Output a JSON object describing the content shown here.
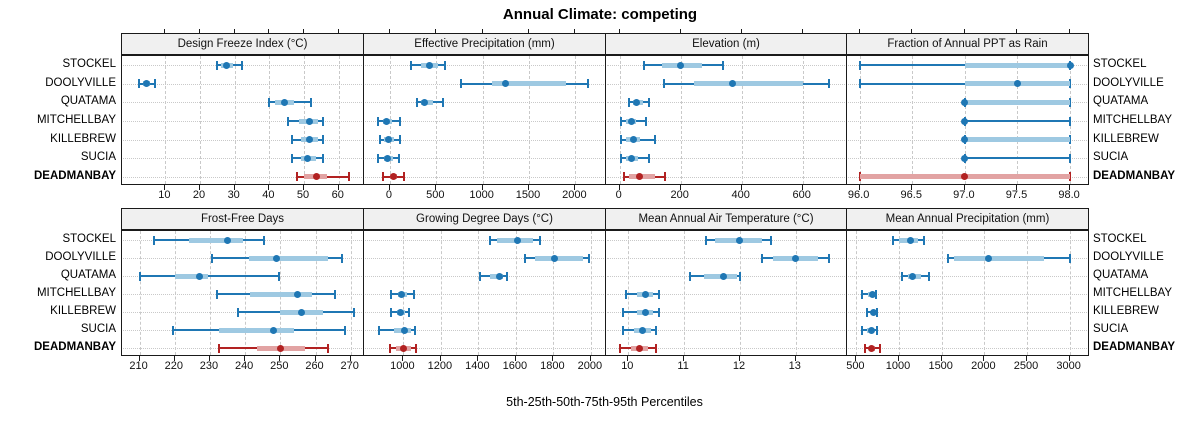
{
  "title": "Annual Climate: competing",
  "xlabel": "5th-25th-50th-75th-95th Percentiles",
  "locations": [
    "STOCKEL",
    "DOOLYVILLE",
    "QUATAMA",
    "MITCHELLBAY",
    "KILLEBREW",
    "SUCIA",
    "DEADMANBAY"
  ],
  "highlight_location": "DEADMANBAY",
  "colors": {
    "series": "#1f77b4",
    "series_band": "#9ec9e2",
    "highlight": "#b22222",
    "highlight_band": "#e2a3a3",
    "strip_bg": "#f0f0f0",
    "border": "#1a1a1a",
    "grid": "#c9c9c9"
  },
  "chart_data": [
    {
      "type": "dotplot-percentiles",
      "title": "Design Freeze Index (°C)",
      "row": 0,
      "col": 0,
      "domain": [
        -2.5,
        67
      ],
      "tick_values": [
        10,
        20,
        30,
        40,
        50,
        60
      ],
      "tick_labels": [
        "10",
        "20",
        "30",
        "40",
        "50",
        "60"
      ],
      "series": [
        {
          "name": "STOCKEL",
          "values": [
            25,
            26,
            27.5,
            29.5,
            32
          ]
        },
        {
          "name": "DOOLYVILLE",
          "values": [
            2.5,
            3.5,
            4.5,
            5.5,
            7
          ]
        },
        {
          "name": "QUATAMA",
          "values": [
            40,
            41.5,
            44.5,
            47,
            52
          ]
        },
        {
          "name": "MITCHELLBAY",
          "values": [
            45.5,
            48.5,
            51.5,
            54,
            55.5
          ]
        },
        {
          "name": "KILLEBREW",
          "values": [
            46.5,
            49,
            51.5,
            54,
            55.5
          ]
        },
        {
          "name": "SUCIA",
          "values": [
            46.5,
            49,
            51,
            53.5,
            55.5
          ]
        },
        {
          "name": "DEADMANBAY",
          "values": [
            48,
            50,
            53.5,
            56.5,
            63
          ]
        }
      ]
    },
    {
      "type": "dotplot-percentiles",
      "title": "Effective Precipitation (mm)",
      "row": 0,
      "col": 1,
      "domain": [
        -280,
        2320
      ],
      "tick_values": [
        0,
        500,
        1000,
        1500,
        2000
      ],
      "tick_labels": [
        "0",
        "500",
        "1000",
        "1500",
        "2000"
      ],
      "series": [
        {
          "name": "STOCKEL",
          "values": [
            230,
            330,
            430,
            520,
            590
          ]
        },
        {
          "name": "DOOLYVILLE",
          "values": [
            770,
            1100,
            1250,
            1900,
            2140
          ]
        },
        {
          "name": "QUATAMA",
          "values": [
            290,
            330,
            370,
            460,
            575
          ]
        },
        {
          "name": "MITCHELLBAY",
          "values": [
            -125,
            -75,
            -35,
            25,
            110
          ]
        },
        {
          "name": "KILLEBREW",
          "values": [
            -110,
            -60,
            -20,
            40,
            110
          ]
        },
        {
          "name": "SUCIA",
          "values": [
            -125,
            -60,
            -25,
            30,
            100
          ]
        },
        {
          "name": "DEADMANBAY",
          "values": [
            -70,
            0,
            35,
            75,
            155
          ]
        }
      ]
    },
    {
      "type": "dotplot-percentiles",
      "title": "Elevation (m)",
      "row": 0,
      "col": 2,
      "domain": [
        -45,
        742
      ],
      "tick_values": [
        0,
        200,
        400,
        600
      ],
      "tick_labels": [
        "0",
        "200",
        "400",
        "600"
      ],
      "series": [
        {
          "name": "STOCKEL",
          "values": [
            80,
            140,
            200,
            270,
            340
          ]
        },
        {
          "name": "DOOLYVILLE",
          "values": [
            145,
            245,
            370,
            600,
            685
          ]
        },
        {
          "name": "QUATAMA",
          "values": [
            30,
            45,
            55,
            75,
            95
          ]
        },
        {
          "name": "MITCHELLBAY",
          "values": [
            5,
            20,
            40,
            55,
            85
          ]
        },
        {
          "name": "KILLEBREW",
          "values": [
            3,
            20,
            45,
            68,
            115
          ]
        },
        {
          "name": "SUCIA",
          "values": [
            5,
            20,
            40,
            60,
            95
          ]
        },
        {
          "name": "DEADMANBAY",
          "values": [
            15,
            30,
            65,
            115,
            150
          ]
        }
      ]
    },
    {
      "type": "dotplot-percentiles",
      "title": "Fraction of Annual PPT as Rain",
      "row": 0,
      "col": 3,
      "domain": [
        95.88,
        98.17
      ],
      "tick_values": [
        96,
        96.5,
        97,
        97.5,
        98
      ],
      "tick_labels": [
        "96.0",
        "96.5",
        "97.0",
        "97.5",
        "98.0"
      ],
      "series": [
        {
          "name": "STOCKEL",
          "values": [
            96,
            97,
            98,
            98,
            98
          ]
        },
        {
          "name": "DOOLYVILLE",
          "values": [
            96,
            97,
            97.5,
            98,
            98
          ]
        },
        {
          "name": "QUATAMA",
          "values": [
            97,
            97,
            97,
            98,
            98
          ]
        },
        {
          "name": "MITCHELLBAY",
          "values": [
            97,
            97,
            97,
            97,
            98
          ]
        },
        {
          "name": "KILLEBREW",
          "values": [
            97,
            97,
            97,
            98,
            98
          ]
        },
        {
          "name": "SUCIA",
          "values": [
            97,
            97,
            97,
            97,
            98
          ]
        },
        {
          "name": "DEADMANBAY",
          "values": [
            96,
            96,
            97,
            98,
            98
          ]
        }
      ]
    },
    {
      "type": "dotplot-percentiles",
      "title": "Frost-Free Days",
      "row": 1,
      "col": 0,
      "domain": [
        205,
        273.5
      ],
      "tick_values": [
        210,
        220,
        230,
        240,
        250,
        260,
        270
      ],
      "tick_labels": [
        "210",
        "220",
        "230",
        "240",
        "250",
        "260",
        "270"
      ],
      "series": [
        {
          "name": "STOCKEL",
          "values": [
            214,
            224,
            235,
            239.5,
            245.5
          ]
        },
        {
          "name": "DOOLYVILLE",
          "values": [
            230.5,
            241,
            249,
            263.5,
            267.5
          ]
        },
        {
          "name": "QUATAMA",
          "values": [
            210,
            220,
            227,
            229.5,
            249.5
          ]
        },
        {
          "name": "MITCHELLBAY",
          "values": [
            232,
            241.5,
            255,
            259,
            265.5
          ]
        },
        {
          "name": "KILLEBREW",
          "values": [
            238,
            250,
            256,
            262,
            271
          ]
        },
        {
          "name": "SUCIA",
          "values": [
            219.5,
            232.5,
            248,
            254,
            268.5
          ]
        },
        {
          "name": "DEADMANBAY",
          "values": [
            232.5,
            243.5,
            250,
            257,
            263.5
          ]
        }
      ]
    },
    {
      "type": "dotplot-percentiles",
      "title": "Growing Degree Days (°C)",
      "row": 1,
      "col": 1,
      "domain": [
        790,
        2075
      ],
      "tick_values": [
        1000,
        1200,
        1400,
        1600,
        1800,
        2000
      ],
      "tick_labels": [
        "1000",
        "1200",
        "1400",
        "1600",
        "1800",
        "2000"
      ],
      "series": [
        {
          "name": "STOCKEL",
          "values": [
            1460,
            1500,
            1610,
            1690,
            1730
          ]
        },
        {
          "name": "DOOLYVILLE",
          "values": [
            1650,
            1700,
            1805,
            1960,
            1990
          ]
        },
        {
          "name": "QUATAMA",
          "values": [
            1410,
            1460,
            1510,
            1530,
            1550
          ]
        },
        {
          "name": "MITCHELLBAY",
          "values": [
            935,
            970,
            990,
            1020,
            1055
          ]
        },
        {
          "name": "KILLEBREW",
          "values": [
            935,
            965,
            985,
            1010,
            1030
          ]
        },
        {
          "name": "SUCIA",
          "values": [
            870,
            950,
            1005,
            1040,
            1060
          ]
        },
        {
          "name": "DEADMANBAY",
          "values": [
            930,
            960,
            1000,
            1040,
            1065
          ]
        }
      ]
    },
    {
      "type": "dotplot-percentiles",
      "title": "Mean Annual Air Temperature (°C)",
      "row": 1,
      "col": 2,
      "domain": [
        9.6,
        13.9
      ],
      "tick_values": [
        10,
        11,
        12,
        13
      ],
      "tick_labels": [
        "10",
        "11",
        "12",
        "13"
      ],
      "series": [
        {
          "name": "STOCKEL",
          "values": [
            11.4,
            11.55,
            12.0,
            12.4,
            12.55
          ]
        },
        {
          "name": "DOOLYVILLE",
          "values": [
            12.4,
            12.6,
            13.0,
            13.4,
            13.6
          ]
        },
        {
          "name": "QUATAMA",
          "values": [
            11.1,
            11.35,
            11.7,
            11.95,
            12.0
          ]
        },
        {
          "name": "MITCHELLBAY",
          "values": [
            9.95,
            10.15,
            10.3,
            10.45,
            10.55
          ]
        },
        {
          "name": "KILLEBREW",
          "values": [
            9.9,
            10.15,
            10.3,
            10.45,
            10.55
          ]
        },
        {
          "name": "SUCIA",
          "values": [
            9.9,
            10.1,
            10.25,
            10.4,
            10.5
          ]
        },
        {
          "name": "DEADMANBAY",
          "values": [
            9.85,
            10.05,
            10.2,
            10.35,
            10.5
          ]
        }
      ]
    },
    {
      "type": "dotplot-percentiles",
      "title": "Mean Annual Precipitation (mm)",
      "row": 1,
      "col": 3,
      "domain": [
        390,
        3215
      ],
      "tick_values": [
        500,
        1000,
        1500,
        2000,
        2500,
        3000
      ],
      "tick_labels": [
        "500",
        "1000",
        "1500",
        "2000",
        "2500",
        "3000"
      ],
      "series": [
        {
          "name": "STOCKEL",
          "values": [
            930,
            1000,
            1130,
            1220,
            1290
          ]
        },
        {
          "name": "DOOLYVILLE",
          "values": [
            1570,
            1650,
            2050,
            2700,
            3000
          ]
        },
        {
          "name": "QUATAMA",
          "values": [
            1040,
            1100,
            1160,
            1260,
            1350
          ]
        },
        {
          "name": "MITCHELLBAY",
          "values": [
            560,
            640,
            690,
            710,
            730
          ]
        },
        {
          "name": "KILLEBREW",
          "values": [
            625,
            670,
            695,
            715,
            740
          ]
        },
        {
          "name": "SUCIA",
          "values": [
            560,
            630,
            675,
            700,
            740
          ]
        },
        {
          "name": "DEADMANBAY",
          "values": [
            600,
            650,
            675,
            720,
            780
          ]
        }
      ]
    }
  ]
}
